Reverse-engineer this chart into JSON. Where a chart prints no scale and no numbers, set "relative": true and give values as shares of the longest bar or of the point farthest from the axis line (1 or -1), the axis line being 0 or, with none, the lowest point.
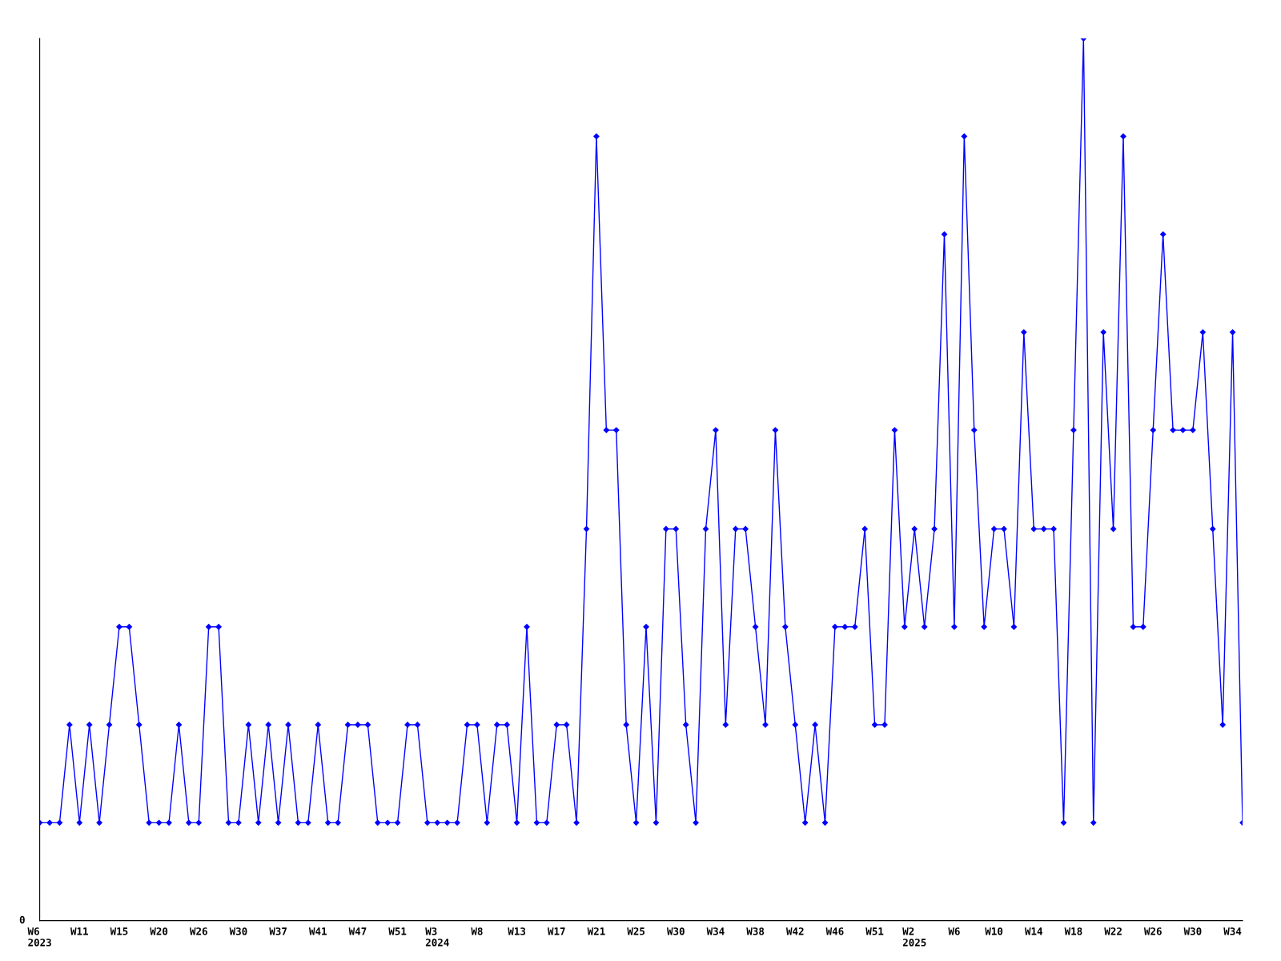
{
  "chart_data": {
    "type": "line",
    "relative": true,
    "color": "#0000ff",
    "marker": "diamond",
    "line_style": "solid",
    "grid": false,
    "legend": false,
    "categories": [
      "W6\n2023",
      null,
      null,
      null,
      "W11",
      null,
      null,
      null,
      "W15",
      null,
      null,
      null,
      "W20",
      null,
      null,
      null,
      "W26",
      null,
      null,
      null,
      "W30",
      null,
      null,
      null,
      "W37",
      null,
      null,
      null,
      "W41",
      null,
      null,
      null,
      "W47",
      null,
      null,
      null,
      "W51",
      null,
      null,
      null,
      "W3\n2024",
      null,
      null,
      null,
      "W8",
      null,
      null,
      null,
      "W13",
      null,
      null,
      null,
      "W17",
      null,
      null,
      null,
      "W21",
      null,
      null,
      null,
      "W25",
      null,
      null,
      null,
      "W30",
      null,
      null,
      null,
      "W34",
      null,
      null,
      null,
      "W38",
      null,
      null,
      null,
      "W42",
      null,
      null,
      null,
      "W46",
      null,
      null,
      null,
      "W51",
      null,
      null,
      null,
      "W2\n2025",
      null,
      null,
      null,
      "W6",
      null,
      null,
      null,
      "W10",
      null,
      null,
      null,
      "W14",
      null,
      null,
      null,
      "W18",
      null,
      null,
      null,
      "W22",
      null,
      null,
      null,
      "W26",
      null,
      null,
      null,
      "W30",
      null,
      null,
      null,
      "W34",
      null
    ],
    "values": [
      0.111,
      0.111,
      0.111,
      0.222,
      0.111,
      0.222,
      0.111,
      0.222,
      0.333,
      0.333,
      0.222,
      0.111,
      0.111,
      0.111,
      0.222,
      0.111,
      0.111,
      0.333,
      0.333,
      0.111,
      0.111,
      0.222,
      0.111,
      0.222,
      0.111,
      0.222,
      0.111,
      0.111,
      0.222,
      0.111,
      0.111,
      0.222,
      0.222,
      0.222,
      0.111,
      0.111,
      0.111,
      0.222,
      0.222,
      0.111,
      0.111,
      0.111,
      0.111,
      0.222,
      0.222,
      0.111,
      0.222,
      0.222,
      0.111,
      0.333,
      0.111,
      0.111,
      0.222,
      0.222,
      0.111,
      0.444,
      0.889,
      0.556,
      0.556,
      0.222,
      0.111,
      0.333,
      0.111,
      0.444,
      0.444,
      0.222,
      0.111,
      0.444,
      0.556,
      0.222,
      0.444,
      0.444,
      0.333,
      0.222,
      0.556,
      0.333,
      0.222,
      0.111,
      0.222,
      0.111,
      0.333,
      0.333,
      0.333,
      0.444,
      0.222,
      0.222,
      0.556,
      0.333,
      0.444,
      0.333,
      0.444,
      0.778,
      0.333,
      0.889,
      0.556,
      0.333,
      0.444,
      0.444,
      0.333,
      0.667,
      0.444,
      0.444,
      0.444,
      0.111,
      0.556,
      1,
      0.111,
      0.667,
      0.444,
      0.889,
      0.333,
      0.333,
      0.556,
      0.778,
      0.556,
      0.556,
      0.556,
      0.667,
      0.444,
      0.222,
      0.667,
      0.111
    ],
    "annotations": [
      "0"
    ]
  }
}
